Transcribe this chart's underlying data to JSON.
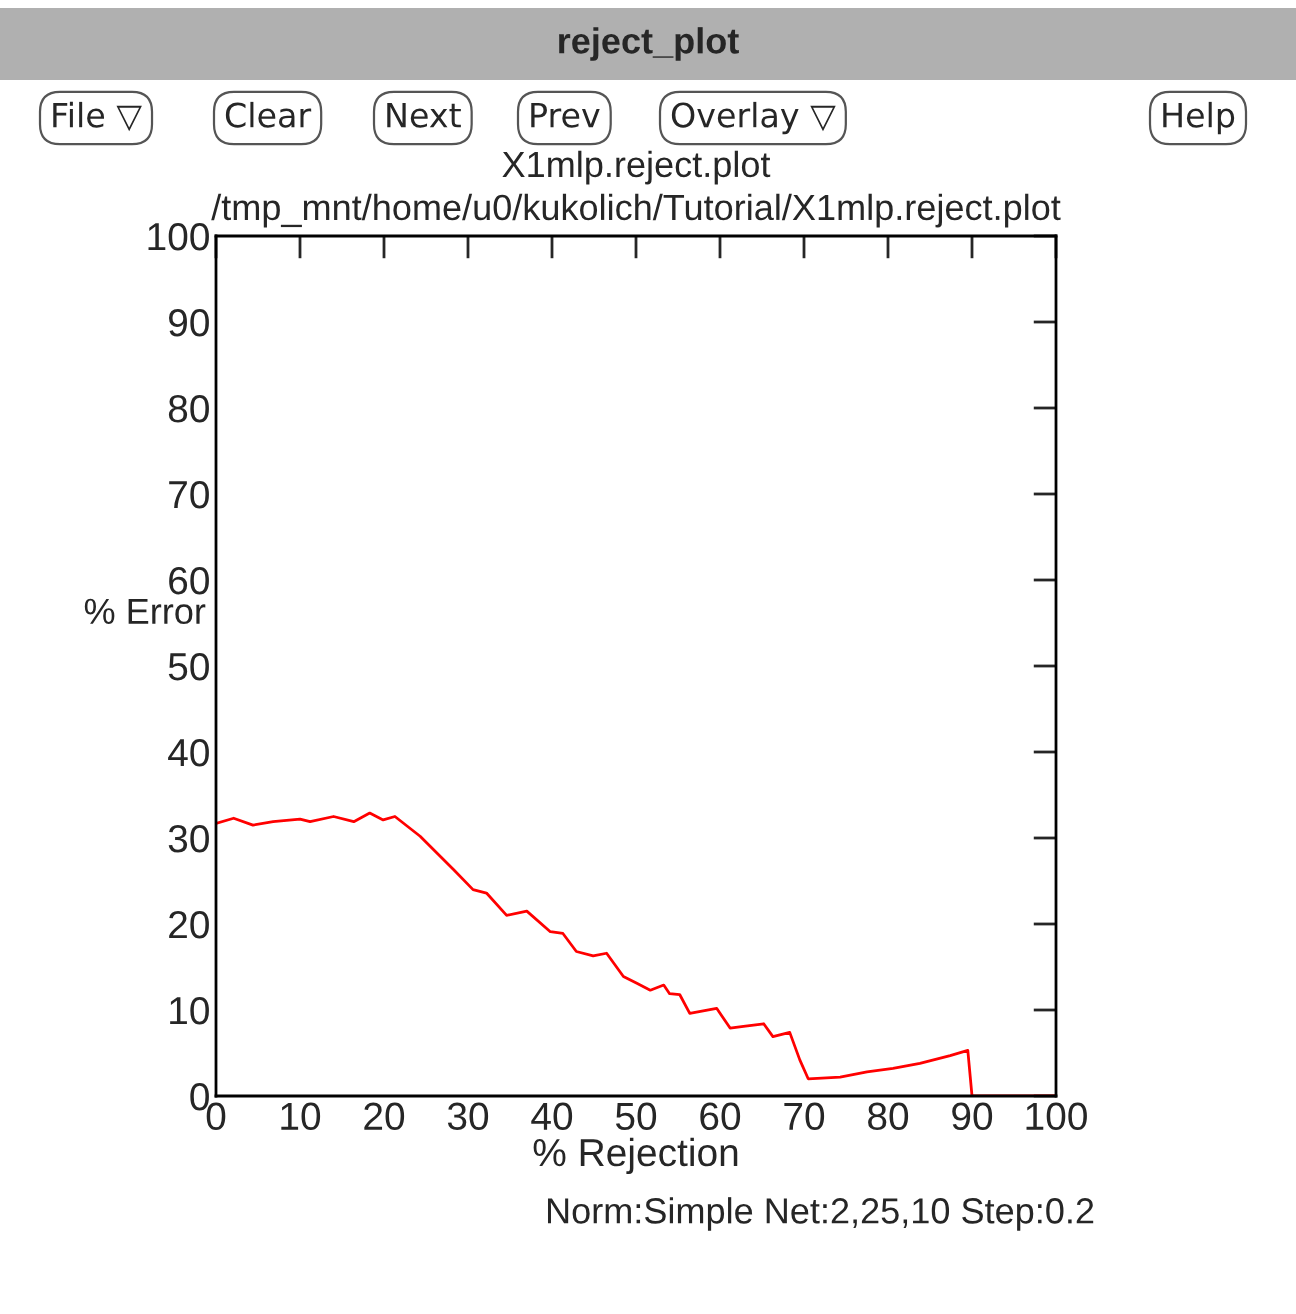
{
  "chart_data": {
    "type": "line",
    "title": "X1mlp.reject.plot",
    "subtitle": "/tmp_mnt/home/u0/kukolich/Tutorial/X1mlp.reject.plot",
    "xlabel": "% Rejection",
    "ylabel": "% Error",
    "annotations": [
      "reject_plot",
      "File ▽",
      "Clear",
      "Next",
      "Prev",
      "Overlay ▽",
      "Help",
      "Norm:Simple Net:2,25,10 Step:0.2"
    ],
    "x": [
      0,
      2.1,
      4.4,
      6.8,
      10,
      11.2,
      14,
      16.4,
      18.3,
      19.9,
      21.3,
      24.3,
      28.3,
      30.6,
      32.2,
      34.6,
      37,
      39.8,
      41.3,
      42.9,
      44.9,
      46.5,
      48.5,
      50.1,
      51.7,
      53.3,
      54,
      55.2,
      56.4,
      59.6,
      61.2,
      62.8,
      65.2,
      66.3,
      68.3,
      69.5,
      70.5,
      74.3,
      77.5,
      80.6,
      83.8,
      87.4,
      89.5,
      90,
      93.3,
      100
    ],
    "series": [
      {
        "color": "#ff0000",
        "values": [
          31.7,
          32.3,
          31.5,
          31.9,
          32.2,
          31.9,
          32.5,
          31.9,
          32.9,
          32.1,
          32.5,
          30.2,
          26.3,
          24.0,
          23.6,
          21.0,
          21.5,
          19.1,
          18.9,
          16.8,
          16.3,
          16.6,
          13.9,
          13.1,
          12.3,
          12.9,
          11.9,
          11.8,
          9.6,
          10.2,
          7.9,
          8.1,
          8.4,
          6.9,
          7.4,
          4.2,
          2.0,
          2.2,
          2.8,
          3.2,
          3.8,
          4.7,
          5.3,
          0,
          0,
          0
        ]
      }
    ],
    "xlim": [
      0,
      100
    ],
    "ylim": [
      0,
      100
    ],
    "xticks": [
      0,
      10,
      20,
      30,
      40,
      50,
      60,
      70,
      80,
      90,
      100
    ],
    "yticks": [
      0,
      10,
      20,
      30,
      40,
      50,
      60,
      70,
      80,
      90,
      100
    ],
    "grid": false,
    "legend": false,
    "marker": "none",
    "line_style": "solid"
  }
}
